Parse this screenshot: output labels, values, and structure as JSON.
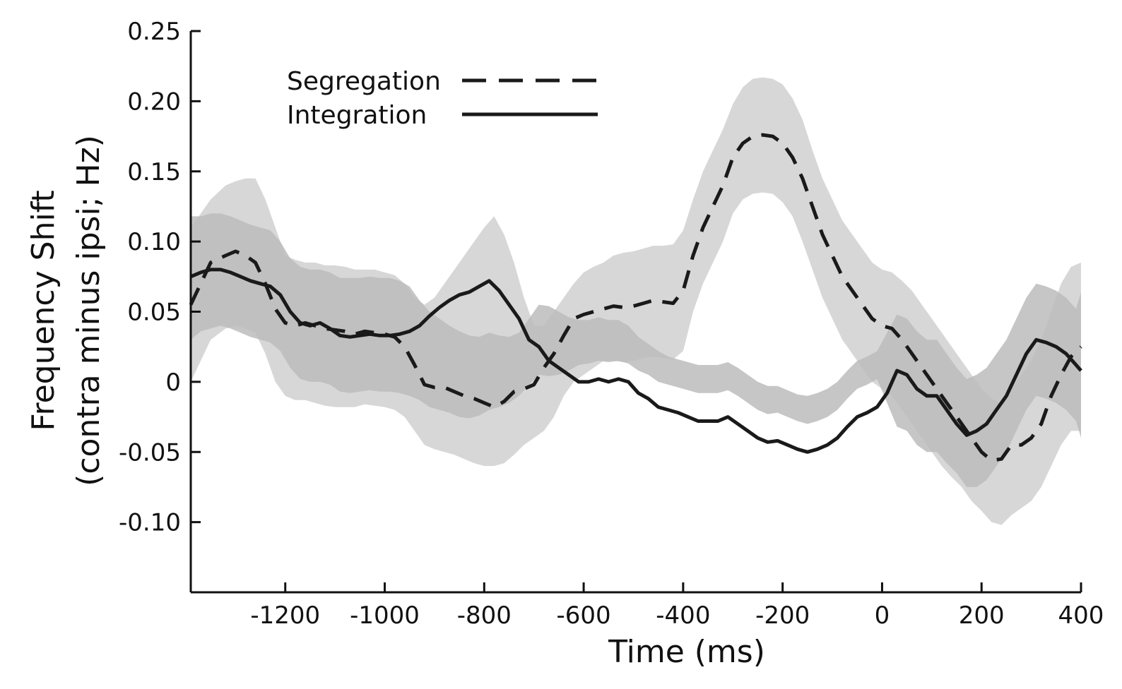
{
  "chart_data": {
    "type": "line",
    "xlabel": "Time (ms)",
    "ylabel": "Frequency Shift",
    "ylabel2": "(contra minus ipsi; Hz)",
    "xlim": [
      -1390,
      400
    ],
    "ylim": [
      -0.15,
      0.25
    ],
    "x_ticks": [
      -1200,
      -1000,
      -800,
      -600,
      -400,
      -200,
      0,
      200,
      400
    ],
    "x_tick_labels": [
      "-1200",
      "-1000",
      "-800",
      "-600",
      "-400",
      "-200",
      "0",
      "200",
      "400"
    ],
    "y_ticks": [
      0.25,
      0.2,
      0.15,
      0.1,
      0.05,
      0,
      -0.05,
      -0.1
    ],
    "y_tick_labels": [
      "0.25",
      "0.20",
      "0.15",
      "0.10",
      "0.05",
      "0",
      "-0.05",
      "-0.10"
    ],
    "grid": false,
    "legend": "top-left",
    "series": [
      {
        "name": "Segregation",
        "style": "dashed",
        "color": "#1a1a1a",
        "band_color": "#d0d0d0",
        "x": [
          -1390,
          -1350,
          -1320,
          -1300,
          -1280,
          -1260,
          -1240,
          -1220,
          -1200,
          -1180,
          -1160,
          -1140,
          -1120,
          -1100,
          -1080,
          -1060,
          -1040,
          -1020,
          -1000,
          -980,
          -960,
          -940,
          -920,
          -900,
          -880,
          -860,
          -840,
          -820,
          -800,
          -780,
          -760,
          -740,
          -720,
          -700,
          -680,
          -660,
          -640,
          -620,
          -600,
          -580,
          -560,
          -540,
          -520,
          -500,
          -480,
          -460,
          -440,
          -420,
          -400,
          -380,
          -360,
          -340,
          -320,
          -300,
          -280,
          -260,
          -240,
          -220,
          -200,
          -180,
          -160,
          -140,
          -120,
          -100,
          -80,
          -60,
          -40,
          -20,
          0,
          20,
          40,
          60,
          80,
          100,
          120,
          140,
          160,
          180,
          200,
          220,
          240,
          260,
          280,
          300,
          320,
          340,
          360,
          380,
          400
        ],
        "values": [
          0.055,
          0.085,
          0.09,
          0.093,
          0.09,
          0.085,
          0.07,
          0.052,
          0.042,
          0.04,
          0.042,
          0.04,
          0.038,
          0.037,
          0.036,
          0.034,
          0.036,
          0.035,
          0.034,
          0.032,
          0.025,
          0.012,
          -0.002,
          -0.004,
          -0.004,
          -0.007,
          -0.01,
          -0.012,
          -0.015,
          -0.018,
          -0.014,
          -0.007,
          -0.005,
          -0.002,
          0.01,
          0.02,
          0.033,
          0.045,
          0.048,
          0.05,
          0.052,
          0.054,
          0.053,
          0.054,
          0.056,
          0.058,
          0.057,
          0.056,
          0.065,
          0.09,
          0.11,
          0.125,
          0.14,
          0.16,
          0.17,
          0.175,
          0.176,
          0.175,
          0.17,
          0.16,
          0.145,
          0.125,
          0.105,
          0.09,
          0.075,
          0.065,
          0.055,
          0.045,
          0.04,
          0.038,
          0.03,
          0.02,
          0.01,
          0.0,
          -0.01,
          -0.02,
          -0.03,
          -0.04,
          -0.05,
          -0.056,
          -0.055,
          -0.045,
          -0.045,
          -0.04,
          -0.03,
          -0.01,
          0.005,
          0.018,
          0.025
        ],
        "band_upper": [
          0.11,
          0.13,
          0.14,
          0.143,
          0.145,
          0.145,
          0.13,
          0.11,
          0.09,
          0.087,
          0.085,
          0.085,
          0.083,
          0.083,
          0.082,
          0.08,
          0.08,
          0.08,
          0.078,
          0.076,
          0.07,
          0.06,
          0.055,
          0.06,
          0.07,
          0.08,
          0.09,
          0.1,
          0.11,
          0.118,
          0.105,
          0.085,
          0.06,
          0.04,
          0.04,
          0.05,
          0.06,
          0.07,
          0.078,
          0.082,
          0.085,
          0.09,
          0.092,
          0.093,
          0.095,
          0.097,
          0.097,
          0.098,
          0.108,
          0.13,
          0.15,
          0.165,
          0.18,
          0.198,
          0.21,
          0.216,
          0.217,
          0.216,
          0.212,
          0.202,
          0.187,
          0.165,
          0.145,
          0.13,
          0.115,
          0.105,
          0.095,
          0.085,
          0.08,
          0.078,
          0.072,
          0.065,
          0.055,
          0.045,
          0.035,
          0.025,
          0.015,
          0.005,
          -0.005,
          -0.012,
          -0.015,
          -0.005,
          0.005,
          0.015,
          0.03,
          0.05,
          0.07,
          0.082,
          0.085
        ],
        "band_lower": [
          0.0,
          0.03,
          0.038,
          0.04,
          0.038,
          0.035,
          0.02,
          0.0,
          -0.01,
          -0.013,
          -0.013,
          -0.015,
          -0.017,
          -0.018,
          -0.018,
          -0.018,
          -0.016,
          -0.017,
          -0.018,
          -0.02,
          -0.025,
          -0.035,
          -0.045,
          -0.048,
          -0.05,
          -0.052,
          -0.055,
          -0.058,
          -0.06,
          -0.06,
          -0.058,
          -0.052,
          -0.045,
          -0.04,
          -0.035,
          -0.025,
          -0.01,
          0.0,
          0.005,
          0.01,
          0.015,
          0.015,
          0.014,
          0.015,
          0.017,
          0.018,
          0.017,
          0.016,
          0.022,
          0.05,
          0.07,
          0.085,
          0.1,
          0.12,
          0.13,
          0.134,
          0.135,
          0.134,
          0.128,
          0.118,
          0.1,
          0.08,
          0.06,
          0.045,
          0.03,
          0.02,
          0.01,
          0.0,
          -0.005,
          -0.01,
          -0.02,
          -0.03,
          -0.04,
          -0.05,
          -0.06,
          -0.068,
          -0.075,
          -0.085,
          -0.092,
          -0.1,
          -0.102,
          -0.095,
          -0.09,
          -0.085,
          -0.075,
          -0.06,
          -0.045,
          -0.035,
          -0.035
        ]
      },
      {
        "name": "Integration",
        "style": "solid",
        "color": "#1a1a1a",
        "band_color": "#bcbcbc",
        "x": [
          -1390,
          -1370,
          -1350,
          -1330,
          -1310,
          -1290,
          -1270,
          -1250,
          -1230,
          -1210,
          -1190,
          -1170,
          -1150,
          -1130,
          -1110,
          -1090,
          -1070,
          -1050,
          -1030,
          -1010,
          -990,
          -970,
          -950,
          -930,
          -910,
          -890,
          -870,
          -850,
          -830,
          -810,
          -790,
          -770,
          -750,
          -730,
          -710,
          -690,
          -670,
          -650,
          -630,
          -610,
          -590,
          -570,
          -550,
          -530,
          -510,
          -490,
          -470,
          -450,
          -430,
          -410,
          -390,
          -370,
          -350,
          -330,
          -310,
          -290,
          -270,
          -250,
          -230,
          -210,
          -190,
          -170,
          -150,
          -130,
          -110,
          -90,
          -70,
          -50,
          -30,
          -10,
          10,
          30,
          50,
          70,
          90,
          110,
          130,
          150,
          170,
          190,
          210,
          230,
          250,
          270,
          290,
          310,
          330,
          350,
          370,
          390,
          400
        ],
        "values": [
          0.075,
          0.078,
          0.08,
          0.08,
          0.078,
          0.075,
          0.072,
          0.07,
          0.068,
          0.062,
          0.05,
          0.042,
          0.04,
          0.042,
          0.038,
          0.033,
          0.032,
          0.033,
          0.034,
          0.033,
          0.033,
          0.034,
          0.036,
          0.04,
          0.047,
          0.053,
          0.058,
          0.062,
          0.064,
          0.068,
          0.072,
          0.065,
          0.055,
          0.045,
          0.03,
          0.025,
          0.015,
          0.01,
          0.005,
          0.0,
          0.0,
          0.002,
          0.0,
          0.002,
          0.0,
          -0.008,
          -0.012,
          -0.018,
          -0.02,
          -0.022,
          -0.025,
          -0.028,
          -0.028,
          -0.028,
          -0.025,
          -0.03,
          -0.035,
          -0.04,
          -0.043,
          -0.042,
          -0.045,
          -0.048,
          -0.05,
          -0.048,
          -0.045,
          -0.04,
          -0.032,
          -0.025,
          -0.022,
          -0.018,
          -0.008,
          0.008,
          0.005,
          -0.005,
          -0.01,
          -0.01,
          -0.02,
          -0.03,
          -0.038,
          -0.035,
          -0.03,
          -0.02,
          -0.01,
          0.005,
          0.02,
          0.03,
          0.028,
          0.025,
          0.02,
          0.012,
          0.008
        ],
        "band_upper": [
          0.118,
          0.118,
          0.12,
          0.12,
          0.118,
          0.115,
          0.112,
          0.11,
          0.108,
          0.1,
          0.088,
          0.082,
          0.08,
          0.08,
          0.078,
          0.074,
          0.074,
          0.074,
          0.075,
          0.074,
          0.074,
          0.072,
          0.068,
          0.058,
          0.05,
          0.045,
          0.04,
          0.036,
          0.033,
          0.032,
          0.035,
          0.033,
          0.032,
          0.035,
          0.045,
          0.055,
          0.054,
          0.05,
          0.046,
          0.044,
          0.044,
          0.046,
          0.044,
          0.044,
          0.04,
          0.032,
          0.027,
          0.022,
          0.018,
          0.016,
          0.014,
          0.012,
          0.012,
          0.012,
          0.014,
          0.01,
          0.005,
          0.0,
          -0.003,
          -0.003,
          -0.006,
          -0.009,
          -0.01,
          -0.008,
          -0.005,
          0.0,
          0.008,
          0.015,
          0.018,
          0.022,
          0.035,
          0.048,
          0.045,
          0.036,
          0.03,
          0.03,
          0.02,
          0.01,
          0.002,
          0.005,
          0.01,
          0.02,
          0.03,
          0.045,
          0.06,
          0.07,
          0.068,
          0.065,
          0.06,
          0.052,
          0.064
        ],
        "band_lower": [
          0.03,
          0.036,
          0.038,
          0.04,
          0.038,
          0.035,
          0.032,
          0.03,
          0.028,
          0.022,
          0.01,
          0.002,
          0.0,
          0.0,
          -0.002,
          -0.007,
          -0.008,
          -0.007,
          -0.006,
          -0.007,
          -0.007,
          -0.008,
          -0.01,
          -0.013,
          -0.018,
          -0.02,
          -0.022,
          -0.025,
          -0.026,
          -0.024,
          -0.02,
          -0.018,
          -0.015,
          -0.01,
          -0.002,
          0.005,
          0.004,
          0.005,
          0.008,
          0.012,
          0.013,
          0.015,
          0.014,
          0.015,
          0.013,
          0.008,
          0.005,
          0.0,
          -0.002,
          -0.004,
          -0.006,
          -0.008,
          -0.008,
          -0.008,
          -0.006,
          -0.01,
          -0.015,
          -0.02,
          -0.023,
          -0.022,
          -0.025,
          -0.028,
          -0.03,
          -0.028,
          -0.025,
          -0.02,
          -0.012,
          -0.005,
          -0.002,
          0.002,
          -0.015,
          -0.032,
          -0.035,
          -0.045,
          -0.05,
          -0.05,
          -0.058,
          -0.065,
          -0.075,
          -0.075,
          -0.07,
          -0.06,
          -0.05,
          -0.035,
          -0.02,
          -0.01,
          -0.012,
          -0.015,
          -0.02,
          -0.028,
          -0.04
        ]
      }
    ]
  }
}
